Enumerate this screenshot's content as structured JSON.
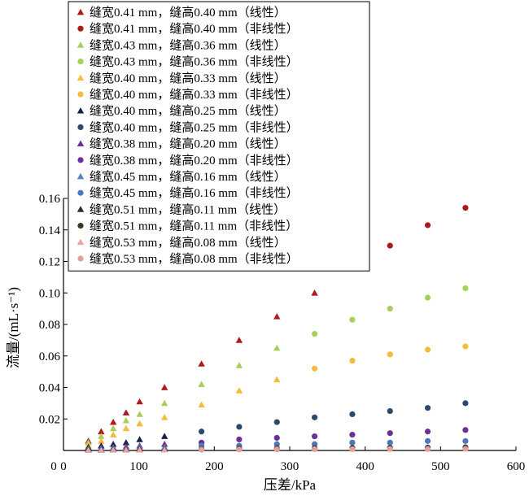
{
  "chart_data": {
    "type": "scatter",
    "xlabel": "压差/kPa",
    "ylabel": "流量/(mL·s⁻¹)",
    "xlim": [
      0,
      600
    ],
    "ylim": [
      0,
      0.16
    ],
    "x_ticks": [
      "0",
      "100",
      "200",
      "300",
      "400",
      "500",
      "600"
    ],
    "y_ticks": [
      "0.02",
      "0.04",
      "0.06",
      "0.08",
      "0.10",
      "0.12",
      "0.14",
      "0.16"
    ],
    "legend_position": "top-left",
    "grid": false,
    "series": [
      {
        "name": "缝宽0.41 mm，缝高0.40 mm（线性）",
        "marker": "triangle",
        "color": "#b0181e",
        "x": [
          33,
          50,
          66,
          83,
          101,
          134,
          183,
          233,
          283,
          333
        ],
        "y": [
          0.006,
          0.012,
          0.018,
          0.024,
          0.031,
          0.04,
          0.055,
          0.07,
          0.085,
          0.1
        ]
      },
      {
        "name": "缝宽0.41 mm，缝高0.40 mm（非线性）",
        "marker": "circle",
        "color": "#b0181e",
        "x": [
          383,
          433,
          483,
          533
        ],
        "y": [
          0.116,
          0.13,
          0.143,
          0.154
        ]
      },
      {
        "name": "缝宽0.43 mm，缝高0.36 mm（线性）",
        "marker": "triangle",
        "color": "#a9cf5b",
        "x": [
          33,
          50,
          66,
          83,
          101,
          134,
          183,
          233,
          283
        ],
        "y": [
          0.005,
          0.009,
          0.014,
          0.019,
          0.023,
          0.03,
          0.042,
          0.054,
          0.065
        ]
      },
      {
        "name": "缝宽0.43 mm，缝高0.36 mm（非线性）",
        "marker": "circle",
        "color": "#a9cf5b",
        "x": [
          333,
          383,
          433,
          483,
          533
        ],
        "y": [
          0.074,
          0.083,
          0.09,
          0.097,
          0.103
        ]
      },
      {
        "name": "缝宽0.40 mm，缝高0.33 mm（线性）",
        "marker": "triangle",
        "color": "#f5bb3a",
        "x": [
          33,
          50,
          66,
          83,
          101,
          134,
          183,
          233,
          283
        ],
        "y": [
          0.003,
          0.006,
          0.01,
          0.014,
          0.017,
          0.021,
          0.029,
          0.038,
          0.045
        ]
      },
      {
        "name": "缝宽0.40 mm，缝高0.33 mm（非线性）",
        "marker": "circle",
        "color": "#f5bb3a",
        "x": [
          333,
          383,
          433,
          483,
          533
        ],
        "y": [
          0.052,
          0.057,
          0.061,
          0.064,
          0.066
        ]
      },
      {
        "name": "缝宽0.40 mm，缝高0.25 mm（线性）",
        "marker": "triangle",
        "color": "#17214e",
        "x": [
          33,
          50,
          66,
          83,
          101,
          134
        ],
        "y": [
          0.002,
          0.003,
          0.004,
          0.005,
          0.007,
          0.009
        ]
      },
      {
        "name": "缝宽0.40 mm，缝高0.25 mm（非线性）",
        "marker": "circle",
        "color": "#2b4a6b",
        "x": [
          183,
          233,
          283,
          333,
          383,
          433,
          483,
          533
        ],
        "y": [
          0.012,
          0.015,
          0.018,
          0.021,
          0.023,
          0.025,
          0.027,
          0.03
        ]
      },
      {
        "name": "缝宽0.38 mm，缝高0.20 mm（线性）",
        "marker": "triangle",
        "color": "#6e3092",
        "x": [
          33,
          50,
          66,
          83,
          101,
          134
        ],
        "y": [
          0.001,
          0.0015,
          0.002,
          0.0025,
          0.003,
          0.004
        ]
      },
      {
        "name": "缝宽0.38 mm，缝高0.20 mm（非线性）",
        "marker": "circle",
        "color": "#6e3092",
        "x": [
          183,
          233,
          283,
          333,
          383,
          433,
          483,
          533
        ],
        "y": [
          0.005,
          0.007,
          0.008,
          0.009,
          0.01,
          0.011,
          0.012,
          0.013
        ]
      },
      {
        "name": "缝宽0.45 mm，缝高0.16 mm（线性）",
        "marker": "triangle",
        "color": "#5a81c4",
        "x": [
          33,
          50,
          66,
          83,
          101,
          134
        ],
        "y": [
          0.001,
          0.001,
          0.0015,
          0.0015,
          0.002,
          0.002
        ]
      },
      {
        "name": "缝宽0.45 mm，缝高0.16 mm（非线性）",
        "marker": "circle",
        "color": "#4c77bd",
        "x": [
          183,
          233,
          283,
          333,
          383,
          433,
          483,
          533
        ],
        "y": [
          0.003,
          0.003,
          0.004,
          0.004,
          0.005,
          0.005,
          0.006,
          0.006
        ]
      },
      {
        "name": "缝宽0.51 mm，缝高0.11 mm（线性）",
        "marker": "triangle",
        "color": "#2f2f1e",
        "x": [
          33,
          50,
          66,
          83,
          101,
          134
        ],
        "y": [
          0.0005,
          0.0005,
          0.0007,
          0.0008,
          0.001,
          0.001
        ]
      },
      {
        "name": "缝宽0.51 mm，缝高0.11 mm（非线性）",
        "marker": "circle",
        "color": "#3a3a22",
        "x": [
          183,
          233,
          283,
          333,
          383,
          433,
          483,
          533
        ],
        "y": [
          0.001,
          0.0012,
          0.0014,
          0.0015,
          0.0016,
          0.0017,
          0.0018,
          0.002
        ]
      },
      {
        "name": "缝宽0.53 mm，缝高0.08 mm（线性）",
        "marker": "triangle",
        "color": "#e8a5a5",
        "x": [
          33,
          50,
          66,
          83,
          101,
          134
        ],
        "y": [
          0.0002,
          0.0002,
          0.0003,
          0.0003,
          0.0004,
          0.0005
        ]
      },
      {
        "name": "缝宽0.53 mm，缝高0.08 mm（非线性）",
        "marker": "circle",
        "color": "#e0a0a0",
        "x": [
          183,
          233,
          283,
          333,
          383,
          433,
          483,
          533
        ],
        "y": [
          0.0005,
          0.0006,
          0.0007,
          0.0008,
          0.0008,
          0.0009,
          0.0009,
          0.001
        ]
      }
    ]
  }
}
